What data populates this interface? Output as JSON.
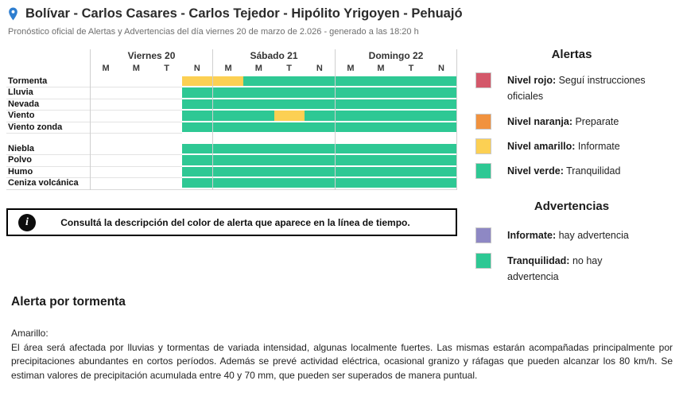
{
  "header": {
    "title": "Bolívar - Carlos Casares - Carlos Tejedor - Hipólito Yrigoyen - Pehuajó",
    "subtitle": "Pronóstico oficial de Alertas y Advertencias del día viernes 20 de marzo de 2.026 - generado a las 18:20 h"
  },
  "colors": {
    "green": "#2ec894",
    "yellow": "#fcd053",
    "red": "#d4586a",
    "orange": "#f1923e",
    "purple": "#8e88c4",
    "pin_blue": "#2e7ed0"
  },
  "timeline": {
    "days": [
      {
        "label": "Viernes 20",
        "periods": [
          "M",
          "M",
          "T",
          "N"
        ]
      },
      {
        "label": "Sábado 21",
        "periods": [
          "M",
          "M",
          "T",
          "N"
        ]
      },
      {
        "label": "Domingo 22",
        "periods": [
          "M",
          "M",
          "T",
          "N"
        ]
      }
    ],
    "rows": [
      {
        "label": "Tormenta",
        "cells": [
          "none",
          "none",
          "none",
          "yellow",
          "yellow",
          "green",
          "green",
          "green",
          "green",
          "green",
          "green",
          "green"
        ]
      },
      {
        "label": "Lluvia",
        "cells": [
          "none",
          "none",
          "none",
          "green",
          "green",
          "green",
          "green",
          "green",
          "green",
          "green",
          "green",
          "green"
        ]
      },
      {
        "label": "Nevada",
        "cells": [
          "none",
          "none",
          "none",
          "green",
          "green",
          "green",
          "green",
          "green",
          "green",
          "green",
          "green",
          "green"
        ]
      },
      {
        "label": "Viento",
        "cells": [
          "none",
          "none",
          "none",
          "green",
          "green",
          "green",
          "yellow",
          "green",
          "green",
          "green",
          "green",
          "green"
        ]
      },
      {
        "label": "Viento zonda",
        "cells": [
          "none",
          "none",
          "none",
          "green",
          "green",
          "green",
          "green",
          "green",
          "green",
          "green",
          "green",
          "green"
        ]
      },
      {
        "label": "",
        "spacer": true,
        "cells": []
      },
      {
        "label": "Niebla",
        "cells": [
          "none",
          "none",
          "none",
          "green",
          "green",
          "green",
          "green",
          "green",
          "green",
          "green",
          "green",
          "green"
        ]
      },
      {
        "label": "Polvo",
        "cells": [
          "none",
          "none",
          "none",
          "green",
          "green",
          "green",
          "green",
          "green",
          "green",
          "green",
          "green",
          "green"
        ]
      },
      {
        "label": "Humo",
        "cells": [
          "none",
          "none",
          "none",
          "green",
          "green",
          "green",
          "green",
          "green",
          "green",
          "green",
          "green",
          "green"
        ]
      },
      {
        "label": "Ceniza volcánica",
        "cells": [
          "none",
          "none",
          "none",
          "green",
          "green",
          "green",
          "green",
          "green",
          "green",
          "green",
          "green",
          "green"
        ]
      }
    ]
  },
  "legend": {
    "alerts": {
      "title": "Alertas",
      "items": [
        {
          "color": "#d4586a",
          "name": "Nivel rojo:",
          "desc": "Seguí instrucciones oficiales"
        },
        {
          "color": "#f1923e",
          "name": "Nivel naranja:",
          "desc": "Preparate"
        },
        {
          "color": "#fcd053",
          "name": "Nivel amarillo:",
          "desc": "Informate"
        },
        {
          "color": "#2ec894",
          "name": "Nivel verde:",
          "desc": "Tranquilidad"
        }
      ]
    },
    "warnings": {
      "title": "Advertencias",
      "items": [
        {
          "color": "#8e88c4",
          "name": "Informate:",
          "desc": "hay advertencia"
        },
        {
          "color": "#2ec894",
          "name": "Tranquilidad:",
          "desc": "no hay advertencia"
        }
      ]
    }
  },
  "notice": {
    "icon": "i",
    "text": "Consultá la descripción del color de alerta que aparece en la línea de tiempo."
  },
  "alert_detail": {
    "title": "Alerta por tormenta",
    "level": "Amarillo:",
    "description": "El área será afectada por lluvias y tormentas de variada intensidad, algunas localmente fuertes. Las mismas estarán acompañadas principalmente por precipitaciones abundantes en cortos períodos. Además se prevé actividad eléctrica, ocasional granizo y ráfagas que pueden alcanzar los 80 km/h. Se estiman valores de precipitación acumulada entre 40 y 70 mm, que pueden ser superados de manera puntual."
  }
}
